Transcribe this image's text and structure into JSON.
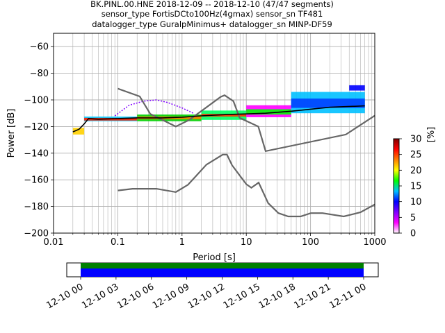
{
  "title": {
    "line1": "BK.PINL.00.HNE   2018-12-09 -- 2018-12-10  (47/47 segments)",
    "line2": "sensor_type FortisDCto100Hz(4gmax) sensor_sn TF481",
    "line3": "datalogger_type GuralpMinimus+ datalogger_sn MINP-DF59"
  },
  "colors": {
    "noise_model": "#666666",
    "mean": "#000000",
    "grid": "#b0b0b0",
    "coverage_fill_green": "#008000",
    "coverage_fill_blue": "#0000ff"
  },
  "chart_data": {
    "type": "heatmap",
    "subtype": "probabilistic-power-spectral-density",
    "xlabel": "Period [s]",
    "ylabel": "Power [dB]",
    "xscale": "log",
    "xlim": [
      0.01,
      1000
    ],
    "ylim": [
      -200,
      -50
    ],
    "x_tick_labels": [
      "0.01",
      "0.1",
      "1",
      "10",
      "100",
      "1000"
    ],
    "x_tick_values": [
      0.01,
      0.1,
      1,
      10,
      100,
      1000
    ],
    "y_tick_labels": [
      "−200",
      "−180",
      "−160",
      "−140",
      "−120",
      "−100",
      "−80",
      "−60"
    ],
    "y_tick_values": [
      -200,
      -180,
      -160,
      -140,
      -120,
      -100,
      -80,
      -60
    ],
    "grid": true,
    "colorbar": {
      "label": "[%]",
      "min": 0,
      "max": 30,
      "tick_labels": [
        "0",
        "5",
        "10",
        "15",
        "20",
        "25",
        "30"
      ],
      "tick_values": [
        0,
        5,
        10,
        15,
        20,
        25,
        30
      ],
      "colormap_stops": [
        "#ffffff",
        "#ff00ff",
        "#8000ff",
        "#0000ff",
        "#00c0ff",
        "#00ff00",
        "#ffff00",
        "#ff8000",
        "#ff0000",
        "#800000"
      ]
    },
    "noise_models": {
      "high": [
        [
          0.1,
          -91.5
        ],
        [
          0.22,
          -97.4
        ],
        [
          0.32,
          -110.5
        ],
        [
          0.8,
          -120
        ],
        [
          1.3,
          -115
        ],
        [
          4.0,
          -97.7
        ],
        [
          4.6,
          -96.5
        ],
        [
          6.3,
          -101
        ],
        [
          7.9,
          -113.5
        ],
        [
          15.4,
          -120
        ],
        [
          20,
          -138.5
        ],
        [
          354.8,
          -126
        ],
        [
          1000,
          -111.8
        ]
      ],
      "low": [
        [
          0.1,
          -168
        ],
        [
          0.17,
          -166.7
        ],
        [
          0.4,
          -166.7
        ],
        [
          0.8,
          -169.2
        ],
        [
          1.24,
          -163.7
        ],
        [
          2.4,
          -148.6
        ],
        [
          4.3,
          -141.1
        ],
        [
          5.0,
          -141.1
        ],
        [
          6.0,
          -149
        ],
        [
          10,
          -163.3
        ],
        [
          12,
          -166
        ],
        [
          15.6,
          -162.1
        ],
        [
          21.9,
          -177.5
        ],
        [
          31.6,
          -185
        ],
        [
          45,
          -187.5
        ],
        [
          70,
          -187.5
        ],
        [
          101,
          -185
        ],
        [
          154,
          -185
        ],
        [
          328,
          -187.5
        ],
        [
          600,
          -184.4
        ],
        [
          1000,
          -178.5
        ]
      ]
    },
    "mean": [
      [
        0.02,
        -124
      ],
      [
        0.025,
        -122
      ],
      [
        0.03,
        -118
      ],
      [
        0.035,
        -114
      ],
      [
        0.05,
        -114.5
      ],
      [
        0.1,
        -114
      ],
      [
        0.2,
        -113.5
      ],
      [
        0.5,
        -113.5
      ],
      [
        1,
        -113
      ],
      [
        2,
        -112
      ],
      [
        5,
        -111
      ],
      [
        10,
        -110.5
      ],
      [
        20,
        -110
      ],
      [
        50,
        -108.5
      ],
      [
        100,
        -107
      ],
      [
        200,
        -105.5
      ],
      [
        700,
        -104.5
      ]
    ],
    "density_bands": [
      {
        "x_from": 0.02,
        "x_to": 0.03,
        "y_top": -121,
        "y_bottom": -126,
        "color": "#ffd000"
      },
      {
        "x_from": 0.03,
        "x_to": 0.2,
        "y_top": -112.5,
        "y_bottom": -116,
        "color": "#00c8ff"
      },
      {
        "x_from": 0.03,
        "x_to": 0.2,
        "y_top": -113.5,
        "y_bottom": -115.5,
        "color": "#ff2000"
      },
      {
        "x_from": 0.2,
        "x_to": 2,
        "y_top": -111,
        "y_bottom": -116,
        "color": "#00d000"
      },
      {
        "x_from": 0.2,
        "x_to": 2,
        "y_top": -112.5,
        "y_bottom": -114.5,
        "color": "#ff8000"
      },
      {
        "x_from": 2,
        "x_to": 10,
        "y_top": -108,
        "y_bottom": -115,
        "color": "#00ff60"
      },
      {
        "x_from": 2,
        "x_to": 10,
        "y_top": -110.5,
        "y_bottom": -112.5,
        "color": "#ff3000"
      },
      {
        "x_from": 10,
        "x_to": 50,
        "y_top": -104,
        "y_bottom": -113,
        "color": "#ff00ff"
      },
      {
        "x_from": 10,
        "x_to": 50,
        "y_top": -107,
        "y_bottom": -111,
        "color": "#00ff00"
      },
      {
        "x_from": 50,
        "x_to": 700,
        "y_top": -94,
        "y_bottom": -110,
        "color": "#00c0ff"
      },
      {
        "x_from": 50,
        "x_to": 700,
        "y_top": -99,
        "y_bottom": -106,
        "color": "#0040ff"
      },
      {
        "x_from": 400,
        "x_to": 700,
        "y_top": -89,
        "y_bottom": -93,
        "color": "#0000ff"
      }
    ],
    "outlier_arc": [
      [
        0.09,
        -112
      ],
      [
        0.15,
        -104
      ],
      [
        0.25,
        -101
      ],
      [
        0.4,
        -100
      ],
      [
        0.6,
        -102
      ],
      [
        1.0,
        -106
      ],
      [
        1.5,
        -110
      ]
    ],
    "outlier_arc_color": "#8000ff"
  },
  "coverage_panel": {
    "time_tick_labels": [
      "12-10 00",
      "12-10 03",
      "12-10 06",
      "12-10 09",
      "12-10 12",
      "12-10 15",
      "12-10 18",
      "12-10 21",
      "12-11 00"
    ]
  }
}
